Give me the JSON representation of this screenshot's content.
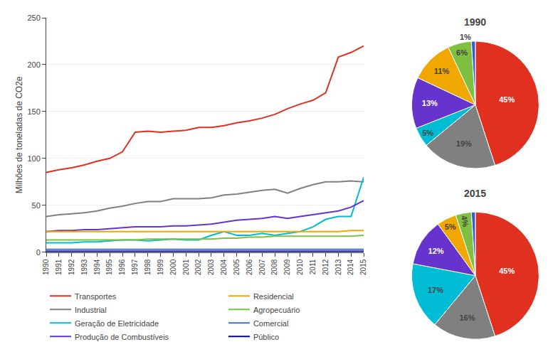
{
  "chart_data": [
    {
      "type": "line",
      "x": [
        1990,
        1991,
        1992,
        1993,
        1994,
        1995,
        1996,
        1997,
        1998,
        1999,
        2000,
        2001,
        2002,
        2003,
        2004,
        2005,
        2006,
        2007,
        2008,
        2009,
        2010,
        2011,
        2012,
        2013,
        2014,
        2015
      ],
      "xlim": [
        1990,
        2015
      ],
      "xticks": [
        1990,
        1991,
        1992,
        1993,
        1994,
        1995,
        1996,
        1997,
        1998,
        1999,
        2000,
        2001,
        2002,
        2003,
        2004,
        2005,
        2006,
        2007,
        2008,
        2009,
        2010,
        2011,
        2012,
        2013,
        2014,
        2015
      ],
      "ylim": [
        0,
        250
      ],
      "yticks": [
        0,
        50,
        100,
        150,
        200,
        250
      ],
      "ylabel": "Milhões de toneladas de CO2e",
      "grid": true,
      "legend": "bottom",
      "series": [
        {
          "name": "Transportes",
          "color": "#e03020",
          "values": [
            85,
            88,
            90,
            93,
            97,
            100,
            107,
            128,
            129,
            128,
            129,
            130,
            133,
            133,
            135,
            138,
            140,
            143,
            147,
            153,
            158,
            162,
            170,
            208,
            213,
            220
          ]
        },
        {
          "name": "Industrial",
          "color": "#808080",
          "values": [
            38,
            40,
            41,
            42,
            44,
            47,
            49,
            52,
            54,
            54,
            57,
            57,
            57,
            58,
            61,
            62,
            64,
            66,
            67,
            63,
            68,
            72,
            75,
            75,
            76,
            75
          ]
        },
        {
          "name": "Geração de Eletricidade",
          "color": "#00bcd4",
          "values": [
            10,
            10,
            10,
            11,
            11,
            12,
            13,
            13,
            12,
            13,
            14,
            13,
            13,
            18,
            22,
            18,
            18,
            20,
            18,
            20,
            22,
            27,
            35,
            38,
            38,
            80
          ]
        },
        {
          "name": "Produção de Combustíveis",
          "color": "#6633cc",
          "values": [
            22,
            23,
            23,
            24,
            24,
            25,
            26,
            27,
            27,
            27,
            28,
            28,
            29,
            30,
            32,
            34,
            35,
            36,
            38,
            36,
            38,
            40,
            42,
            44,
            48,
            55
          ]
        },
        {
          "name": "Residencial",
          "color": "#f0a800",
          "values": [
            22,
            22,
            22,
            22,
            22,
            22,
            22,
            22,
            22,
            22,
            22,
            22,
            22,
            22,
            22,
            22,
            22,
            22,
            22,
            22,
            22,
            22,
            22,
            22,
            23,
            23
          ]
        },
        {
          "name": "Agropecuário",
          "color": "#80c040",
          "values": [
            13,
            13,
            13,
            13,
            13,
            13,
            13,
            13,
            14,
            14,
            14,
            14,
            14,
            14,
            15,
            15,
            16,
            16,
            17,
            17,
            17,
            17,
            17,
            17,
            17,
            18
          ]
        },
        {
          "name": "Comercial",
          "color": "#4472c4",
          "values": [
            3,
            3,
            3,
            3,
            3,
            3,
            3,
            3,
            3,
            3,
            3,
            3,
            3,
            3,
            3,
            3,
            3,
            3,
            3,
            3,
            3,
            3,
            3,
            3,
            3,
            3
          ]
        },
        {
          "name": "Público",
          "color": "#00008b",
          "values": [
            1,
            1,
            1,
            1,
            1,
            1,
            1,
            1,
            1,
            1,
            1,
            1,
            1,
            1,
            1,
            1,
            1,
            1,
            1,
            1,
            1,
            1,
            1,
            1,
            1,
            1
          ]
        }
      ]
    },
    {
      "type": "pie",
      "title": "1990",
      "values": [
        45,
        19,
        5,
        13,
        11,
        6,
        1
      ],
      "value_labels": [
        "45%",
        "19%",
        "5%",
        "13%",
        "11%",
        "6%",
        "1%"
      ],
      "colors": [
        "#e03020",
        "#808080",
        "#00bcd4",
        "#6633cc",
        "#f0a800",
        "#80c040",
        "#3060d0"
      ],
      "data_labels": true
    },
    {
      "type": "pie",
      "title": "2015",
      "values": [
        45,
        16,
        17,
        12,
        5,
        4,
        1
      ],
      "value_labels": [
        "45%",
        "16%",
        "17%",
        "12%",
        "5%",
        "4%",
        null
      ],
      "colors": [
        "#e03020",
        "#808080",
        "#00bcd4",
        "#6633cc",
        "#f0a800",
        "#80c040",
        "#3060d0"
      ],
      "data_labels": true
    }
  ]
}
